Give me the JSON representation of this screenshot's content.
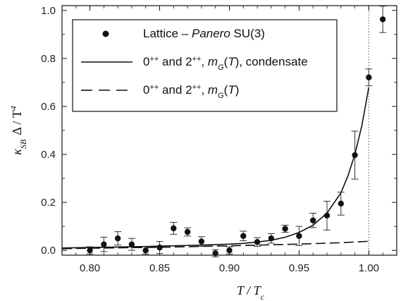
{
  "chart_data": {
    "type": "scatter",
    "xlabel": "T / T",
    "xlabel_sub": "c",
    "ylabel": "κ",
    "ylabel_sub": "SB",
    "ylabel_rest": "Δ / T",
    "ylabel_sup": "4",
    "xlim": [
      0.78,
      1.02
    ],
    "ylim": [
      -0.02,
      1.02
    ],
    "xticks": [
      0.8,
      0.85,
      0.9,
      0.95,
      1.0
    ],
    "xtick_labels": [
      "0.80",
      "0.85",
      "0.90",
      "0.95",
      "1.00"
    ],
    "yticks": [
      0.0,
      0.2,
      0.4,
      0.6,
      0.8,
      1.0
    ],
    "ytick_labels": [
      "0.0",
      "0.2",
      "0.4",
      "0.6",
      "0.8",
      "1.0"
    ],
    "vline_x": 1.0,
    "legend_position": "top",
    "legend": [
      {
        "style": "marker",
        "parts": [
          {
            "text": "Lattice – ",
            "italic": false
          },
          {
            "text": "Panero",
            "italic": true
          },
          {
            "text": " SU(3)",
            "italic": false
          }
        ]
      },
      {
        "style": "solid",
        "parts": [
          {
            "text": "0",
            "italic": false
          },
          {
            "text": "++",
            "italic": false,
            "sup": true
          },
          {
            "text": " and 2",
            "italic": false
          },
          {
            "text": "++",
            "italic": false,
            "sup": true
          },
          {
            "text": ", ",
            "italic": false
          },
          {
            "text": "m",
            "italic": true
          },
          {
            "text": "G",
            "italic": true,
            "sub": true
          },
          {
            "text": "(",
            "italic": false
          },
          {
            "text": "T",
            "italic": true
          },
          {
            "text": "), condensate",
            "italic": false
          }
        ]
      },
      {
        "style": "dashed",
        "parts": [
          {
            "text": "0",
            "italic": false
          },
          {
            "text": "++",
            "italic": false,
            "sup": true
          },
          {
            "text": " and 2",
            "italic": false
          },
          {
            "text": "++",
            "italic": false,
            "sup": true
          },
          {
            "text": ", ",
            "italic": false
          },
          {
            "text": "m",
            "italic": true
          },
          {
            "text": "G",
            "italic": true,
            "sub": true
          },
          {
            "text": "(",
            "italic": false
          },
          {
            "text": "T",
            "italic": true
          },
          {
            "text": ")",
            "italic": false
          }
        ]
      }
    ],
    "series": [
      {
        "kind": "points",
        "x": [
          0.8,
          0.81,
          0.82,
          0.83,
          0.84,
          0.85,
          0.86,
          0.87,
          0.88,
          0.89,
          0.9,
          0.91,
          0.92,
          0.93,
          0.94,
          0.95,
          0.96,
          0.97,
          0.98,
          0.99,
          1.0,
          1.01
        ],
        "y": [
          0.0,
          0.025,
          0.05,
          0.025,
          0.0,
          0.012,
          0.092,
          0.077,
          0.037,
          -0.012,
          0.0,
          0.06,
          0.035,
          0.05,
          0.09,
          0.06,
          0.125,
          0.145,
          0.195,
          0.397,
          0.721,
          0.963
        ],
        "err": [
          0.015,
          0.03,
          0.028,
          0.025,
          0.015,
          0.025,
          0.025,
          0.017,
          0.02,
          0.015,
          0.015,
          0.02,
          0.018,
          0.02,
          0.015,
          0.04,
          0.03,
          0.06,
          0.048,
          0.1,
          0.035,
          0.055
        ]
      },
      {
        "kind": "solid",
        "x": [
          0.78,
          0.8,
          0.82,
          0.84,
          0.86,
          0.88,
          0.9,
          0.91,
          0.92,
          0.93,
          0.94,
          0.95,
          0.96,
          0.97,
          0.98,
          0.985,
          0.99,
          0.995,
          1.0
        ],
        "y": [
          0.01,
          0.012,
          0.014,
          0.016,
          0.019,
          0.022,
          0.026,
          0.029,
          0.035,
          0.042,
          0.055,
          0.075,
          0.105,
          0.155,
          0.24,
          0.31,
          0.4,
          0.52,
          0.68
        ]
      },
      {
        "kind": "dashed",
        "x": [
          0.78,
          0.8,
          0.85,
          0.9,
          0.95,
          0.98,
          1.0
        ],
        "y": [
          0.007,
          0.009,
          0.013,
          0.019,
          0.026,
          0.032,
          0.038
        ]
      }
    ]
  }
}
